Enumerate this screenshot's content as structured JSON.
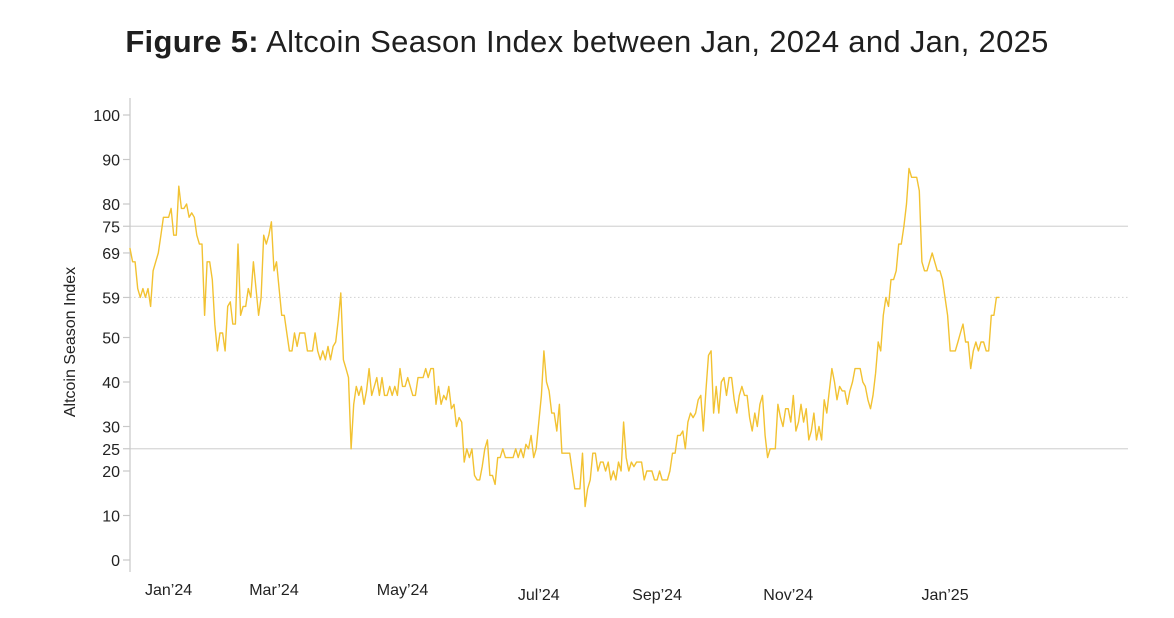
{
  "title": {
    "prefix": "Figure 5:",
    "text": "Altcoin Season Index between Jan, 2024 and Jan, 2025"
  },
  "colors": {
    "line": "#f2c232",
    "axis": "#c8c8c8",
    "reference": "#d6d6d6",
    "text": "#222222"
  },
  "chart_data": {
    "type": "line",
    "title": "Figure 5: Altcoin Season Index between Jan, 2024 and Jan, 2025",
    "xlabel": "",
    "ylabel": "Altcoin Season Index",
    "ylim": [
      0,
      100
    ],
    "yticks": [
      0,
      10,
      20,
      25,
      30,
      40,
      50,
      59,
      69,
      75,
      80,
      90,
      100
    ],
    "xlim": [
      0,
      380
    ],
    "xticks": [
      {
        "label": "Jan’24",
        "x": 15
      },
      {
        "label": "Mar’24",
        "x": 56
      },
      {
        "label": "May’24",
        "x": 106
      },
      {
        "label": "Jul’24",
        "x": 159
      },
      {
        "label": "Sep’24",
        "x": 205
      },
      {
        "label": "Nov’24",
        "x": 256
      },
      {
        "label": "Jan’25",
        "x": 317
      }
    ],
    "reference_lines": [
      {
        "value": 75,
        "style": "solid"
      },
      {
        "value": 25,
        "style": "solid"
      },
      {
        "value": 59,
        "style": "dotted"
      }
    ],
    "series": [
      {
        "name": "Altcoin Season Index",
        "values": [
          70,
          67,
          67,
          61,
          59,
          61,
          59,
          61,
          57,
          65,
          67,
          69,
          73,
          77,
          77,
          77,
          79,
          73,
          73,
          84,
          79,
          79,
          80,
          77,
          78,
          77,
          73,
          71,
          71,
          55,
          67,
          67,
          63,
          53,
          47,
          51,
          51,
          47,
          57,
          58,
          53,
          53,
          71,
          55,
          57,
          57,
          61,
          59,
          67,
          61,
          55,
          59,
          73,
          71,
          73,
          76,
          65,
          67,
          61,
          55,
          55,
          51,
          47,
          47,
          51,
          48,
          51,
          51,
          51,
          47,
          47,
          47,
          51,
          47,
          45,
          47,
          45,
          48,
          45,
          48,
          49,
          54,
          60,
          45,
          43,
          41,
          25,
          35,
          39,
          37,
          39,
          35,
          38,
          43,
          37,
          39,
          41,
          37,
          41,
          37,
          37,
          39,
          37,
          39,
          37,
          43,
          39,
          39,
          41,
          39,
          37,
          37,
          41,
          41,
          41,
          43,
          41,
          43,
          43,
          35,
          39,
          35,
          37,
          36,
          39,
          34,
          35,
          30,
          32,
          31,
          22,
          25,
          23,
          25,
          19,
          18,
          18,
          21,
          25,
          27,
          19,
          19,
          17,
          23,
          23,
          25,
          23,
          23,
          23,
          23,
          25,
          23,
          25,
          23,
          26,
          25,
          28,
          23,
          25,
          31,
          37,
          47,
          40,
          38,
          33,
          33,
          29,
          35,
          24,
          24,
          24,
          24,
          20,
          16,
          16,
          16,
          24,
          12,
          16,
          18,
          24,
          24,
          20,
          22,
          22,
          20,
          22,
          18,
          20,
          18,
          22,
          20,
          31,
          23,
          20,
          22,
          21,
          22,
          22,
          22,
          18,
          20,
          20,
          20,
          18,
          18,
          20,
          18,
          18,
          18,
          20,
          24,
          24,
          28,
          28,
          29,
          25,
          31,
          33,
          32,
          33,
          36,
          37,
          29,
          38,
          46,
          47,
          33,
          39,
          33,
          40,
          41,
          37,
          41,
          41,
          36,
          33,
          37,
          39,
          37,
          37,
          32,
          29,
          33,
          30,
          35,
          37,
          28,
          23,
          25,
          25,
          25,
          35,
          32,
          30,
          34,
          34,
          31,
          37,
          29,
          31,
          35,
          31,
          34,
          27,
          29,
          33,
          27,
          30,
          27,
          36,
          33,
          38,
          43,
          40,
          36,
          39,
          38,
          38,
          35,
          38,
          40,
          43,
          43,
          43,
          40,
          39,
          36,
          34,
          37,
          42,
          49,
          47,
          55,
          59,
          57,
          63,
          63,
          65,
          71,
          71,
          75,
          80,
          88,
          86,
          86,
          86,
          83,
          67,
          65,
          65,
          67,
          69,
          67,
          65,
          65,
          63,
          59,
          55,
          47,
          47,
          47,
          49,
          51,
          53,
          49,
          49,
          43,
          47,
          49,
          47,
          49,
          49,
          47,
          47,
          55,
          55,
          59,
          59
        ]
      }
    ]
  }
}
